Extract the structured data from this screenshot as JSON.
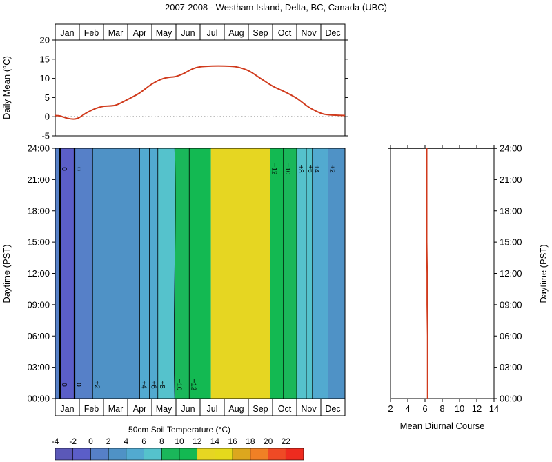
{
  "title": "2007-2008 - Westham Island, Delta, BC, Canada (UBC)",
  "months": [
    "Jan",
    "Feb",
    "Mar",
    "Apr",
    "May",
    "Jun",
    "Jul",
    "Aug",
    "Sep",
    "Oct",
    "Nov",
    "Dec"
  ],
  "colors": {
    "line": "#d03a1c",
    "frame": "#000000",
    "palette": [
      "#5b58b8",
      "#5b5ec8",
      "#5680c8",
      "#4f92c6",
      "#52aad0",
      "#55c2cc",
      "#1ab75a",
      "#13b952",
      "#7dc13a",
      "#e6d622",
      "#e5d91c",
      "#dca71e",
      "#f08025",
      "#ef4a25",
      "#ee2b1f"
    ]
  },
  "chart_data": [
    {
      "id": "daily-mean",
      "type": "line",
      "ylabel": "Daily Mean (°C)",
      "ylim": [
        -5,
        20
      ],
      "yticks": [
        -5,
        0,
        5,
        10,
        15,
        20
      ],
      "x_unit": "month",
      "xlim": [
        0,
        12
      ],
      "reference_line": 0,
      "x": [
        0,
        0.2,
        0.5,
        0.8,
        1.0,
        1.3,
        1.7,
        2.0,
        2.5,
        3.0,
        3.5,
        4.0,
        4.5,
        5.0,
        5.3,
        5.7,
        6.0,
        6.5,
        7.0,
        7.5,
        8.0,
        8.5,
        9.0,
        9.5,
        10.0,
        10.5,
        11.0,
        11.3,
        11.6,
        12.0
      ],
      "y": [
        0.3,
        0.2,
        -0.4,
        -0.6,
        -0.2,
        1.0,
        2.2,
        2.7,
        3.0,
        4.5,
        6.2,
        8.5,
        10.0,
        10.5,
        11.2,
        12.5,
        13.0,
        13.2,
        13.2,
        13.0,
        12.0,
        10.0,
        8.0,
        6.5,
        4.8,
        2.5,
        0.9,
        0.5,
        0.4,
        0.3
      ]
    },
    {
      "id": "soil-temperature-contour",
      "type": "heatmap",
      "ylabel": "Daytime (PST)",
      "yticks": [
        "00:00",
        "03:00",
        "06:00",
        "09:00",
        "12:00",
        "15:00",
        "18:00",
        "21:00",
        "24:00"
      ],
      "y_range_hours": [
        0,
        24
      ],
      "x_unit": "month",
      "xlim": [
        0,
        12
      ],
      "bands": [
        {
          "x0": 0.0,
          "x1": 0.2,
          "value": 0
        },
        {
          "x0": 0.2,
          "x1": 0.8,
          "value": -1
        },
        {
          "x0": 0.8,
          "x1": 1.55,
          "value": 1
        },
        {
          "x0": 1.55,
          "x1": 3.5,
          "value": 3
        },
        {
          "x0": 3.5,
          "x1": 4.25,
          "value": 5
        },
        {
          "x0": 4.25,
          "x1": 4.95,
          "value": 7
        },
        {
          "x0": 4.95,
          "x1": 5.55,
          "value": 9
        },
        {
          "x0": 5.55,
          "x1": 6.45,
          "value": 11
        },
        {
          "x0": 6.45,
          "x1": 8.9,
          "value": 13
        },
        {
          "x0": 8.9,
          "x1": 9.45,
          "value": 11
        },
        {
          "x0": 9.45,
          "x1": 10.0,
          "value": 9
        },
        {
          "x0": 10.0,
          "x1": 10.65,
          "value": 7
        },
        {
          "x0": 10.65,
          "x1": 11.3,
          "value": 5
        },
        {
          "x0": 11.3,
          "x1": 12.0,
          "value": 3
        }
      ],
      "contours": [
        {
          "x": 0.2,
          "label": "0",
          "emphasis": true,
          "label_pos": "both"
        },
        {
          "x": 0.8,
          "label": "0",
          "emphasis": true,
          "label_pos": "both"
        },
        {
          "x": 1.55,
          "label": "+2",
          "emphasis": false,
          "label_pos": "bottom"
        },
        {
          "x": 3.5,
          "label": "+4",
          "emphasis": false,
          "label_pos": "bottom"
        },
        {
          "x": 3.9,
          "label": "+6",
          "emphasis": false,
          "label_pos": "bottom"
        },
        {
          "x": 4.25,
          "label": "+8",
          "emphasis": false,
          "label_pos": "bottom"
        },
        {
          "x": 4.95,
          "label": "+10",
          "emphasis": false,
          "label_pos": "bottom"
        },
        {
          "x": 5.55,
          "label": "+12",
          "emphasis": false,
          "label_pos": "bottom"
        },
        {
          "x": 8.9,
          "label": "+12",
          "emphasis": false,
          "label_pos": "top"
        },
        {
          "x": 9.45,
          "label": "+10",
          "emphasis": false,
          "label_pos": "top"
        },
        {
          "x": 10.0,
          "label": "+8",
          "emphasis": false,
          "label_pos": "top"
        },
        {
          "x": 10.4,
          "label": "+6",
          "emphasis": false,
          "label_pos": "top"
        },
        {
          "x": 10.65,
          "label": "+4",
          "emphasis": false,
          "label_pos": "top"
        },
        {
          "x": 11.3,
          "label": "+2",
          "emphasis": false,
          "label_pos": "top"
        }
      ]
    },
    {
      "id": "mean-diurnal-course",
      "type": "line",
      "xlabel": "Mean Diurnal Course",
      "ylabel": "Daytime (PST)",
      "xlim": [
        2,
        14
      ],
      "xticks": [
        2,
        4,
        6,
        8,
        10,
        12,
        14
      ],
      "yticks": [
        "00:00",
        "03:00",
        "06:00",
        "09:00",
        "12:00",
        "15:00",
        "18:00",
        "21:00",
        "24:00"
      ],
      "hours": [
        0,
        3,
        6,
        9,
        12,
        15,
        18,
        21,
        24
      ],
      "values": [
        6.3,
        6.3,
        6.3,
        6.25,
        6.25,
        6.2,
        6.2,
        6.2,
        6.2
      ]
    },
    {
      "id": "colorbar",
      "type": "legend",
      "label": "50cm Soil Temperature (°C)",
      "tick_labels": [
        "-4",
        "-2",
        "0",
        "2",
        "4",
        "6",
        "8",
        "10",
        "12",
        "14",
        "16",
        "18",
        "20",
        "22"
      ]
    }
  ]
}
